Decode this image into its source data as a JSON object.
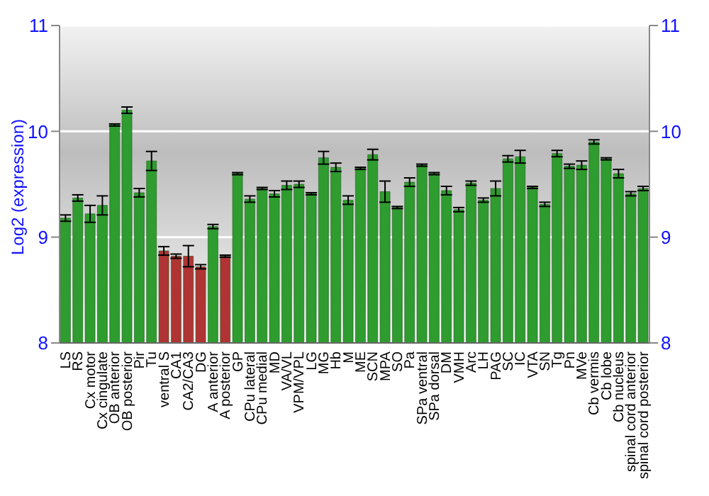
{
  "chart_data": {
    "type": "bar",
    "ylabel": "Log2 (expression)",
    "categories": [
      "LS",
      "RS",
      "Cx motor",
      "Cx cingulate",
      "OB anterior",
      "OB posterior",
      "Pir",
      "Tu",
      "ventral S",
      "CA1",
      "CA2/CA3",
      "DG",
      "A anterior",
      "A posterior",
      "GP",
      "CPu lateral",
      "CPu medial",
      "MD",
      "VA/VL",
      "VPM/VPL",
      "LG",
      "MG",
      "Hb",
      "M",
      "ME",
      "SCN",
      "MPA",
      "SO",
      "Pa",
      "SPa ventral",
      "SPa dorsal",
      "DM",
      "VMH",
      "Arc",
      "LH",
      "PAG",
      "SC",
      "IC",
      "VTA",
      "SN",
      "Tg",
      "Pn",
      "MVe",
      "Cb vermis",
      "Cb lobe",
      "Cb nucleus",
      "spinal cord anterior",
      "spinal cord posterior"
    ],
    "values": [
      9.18,
      9.37,
      9.22,
      9.3,
      10.06,
      10.2,
      9.42,
      9.72,
      8.87,
      8.82,
      8.82,
      8.72,
      9.1,
      8.82,
      9.6,
      9.36,
      9.46,
      9.41,
      9.49,
      9.5,
      9.41,
      9.75,
      9.66,
      9.35,
      9.65,
      9.78,
      9.43,
      9.28,
      9.52,
      9.68,
      9.6,
      9.44,
      9.26,
      9.51,
      9.35,
      9.46,
      9.74,
      9.76,
      9.47,
      9.31,
      9.79,
      9.67,
      9.68,
      9.9,
      9.74,
      9.6,
      9.41,
      9.46
    ],
    "errors": [
      0.03,
      0.03,
      0.08,
      0.09,
      0.01,
      0.03,
      0.04,
      0.09,
      0.04,
      0.02,
      0.1,
      0.02,
      0.02,
      0.01,
      0.01,
      0.03,
      0.01,
      0.03,
      0.04,
      0.03,
      0.01,
      0.06,
      0.04,
      0.04,
      0.01,
      0.05,
      0.1,
      0.01,
      0.04,
      0.01,
      0.01,
      0.04,
      0.02,
      0.02,
      0.02,
      0.07,
      0.03,
      0.06,
      0.01,
      0.02,
      0.03,
      0.02,
      0.04,
      0.02,
      0.01,
      0.04,
      0.02,
      0.02
    ],
    "colors": [
      "#2e9c2e",
      "#2e9c2e",
      "#2e9c2e",
      "#2e9c2e",
      "#2e9c2e",
      "#2e9c2e",
      "#2e9c2e",
      "#2e9c2e",
      "#b03434",
      "#b03434",
      "#b03434",
      "#b03434",
      "#2e9c2e",
      "#b03434",
      "#2e9c2e",
      "#2e9c2e",
      "#2e9c2e",
      "#2e9c2e",
      "#2e9c2e",
      "#2e9c2e",
      "#2e9c2e",
      "#2e9c2e",
      "#2e9c2e",
      "#2e9c2e",
      "#2e9c2e",
      "#2e9c2e",
      "#2e9c2e",
      "#2e9c2e",
      "#2e9c2e",
      "#2e9c2e",
      "#2e9c2e",
      "#2e9c2e",
      "#2e9c2e",
      "#2e9c2e",
      "#2e9c2e",
      "#2e9c2e",
      "#2e9c2e",
      "#2e9c2e",
      "#2e9c2e",
      "#2e9c2e",
      "#2e9c2e",
      "#2e9c2e",
      "#2e9c2e",
      "#2e9c2e",
      "#2e9c2e",
      "#2e9c2e",
      "#2e9c2e",
      "#2e9c2e"
    ],
    "ylim": [
      8,
      11
    ],
    "yticks": [
      8,
      9,
      10,
      11
    ],
    "y2lim": [
      8,
      11
    ],
    "y2ticks": [
      8,
      9,
      10,
      11
    ],
    "grid": "y"
  }
}
